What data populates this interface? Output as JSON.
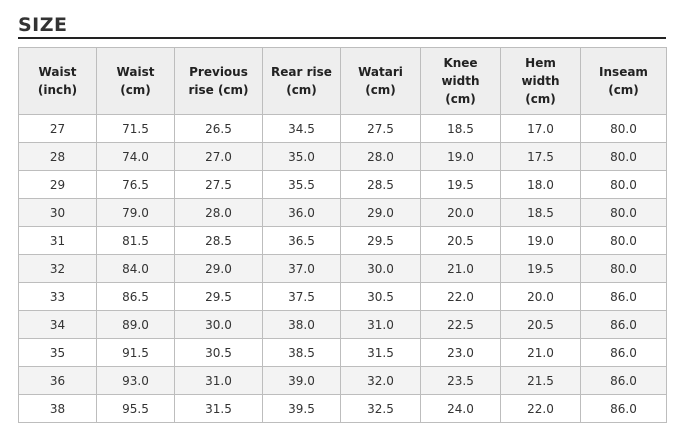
{
  "title": "SIZE",
  "table": {
    "headers": [
      "Waist\n(inch)",
      "Waist\n(cm)",
      "Previous\nrise (cm)",
      "Rear rise\n(cm)",
      "Watari\n(cm)",
      "Knee\nwidth\n(cm)",
      "Hem\nwidth\n(cm)",
      "Inseam\n(cm)"
    ],
    "rows": [
      [
        "27",
        "71.5",
        "26.5",
        "34.5",
        "27.5",
        "18.5",
        "17.0",
        "80.0"
      ],
      [
        "28",
        "74.0",
        "27.0",
        "35.0",
        "28.0",
        "19.0",
        "17.5",
        "80.0"
      ],
      [
        "29",
        "76.5",
        "27.5",
        "35.5",
        "28.5",
        "19.5",
        "18.0",
        "80.0"
      ],
      [
        "30",
        "79.0",
        "28.0",
        "36.0",
        "29.0",
        "20.0",
        "18.5",
        "80.0"
      ],
      [
        "31",
        "81.5",
        "28.5",
        "36.5",
        "29.5",
        "20.5",
        "19.0",
        "80.0"
      ],
      [
        "32",
        "84.0",
        "29.0",
        "37.0",
        "30.0",
        "21.0",
        "19.5",
        "80.0"
      ],
      [
        "33",
        "86.5",
        "29.5",
        "37.5",
        "30.5",
        "22.0",
        "20.0",
        "86.0"
      ],
      [
        "34",
        "89.0",
        "30.0",
        "38.0",
        "31.0",
        "22.5",
        "20.5",
        "86.0"
      ],
      [
        "35",
        "91.5",
        "30.5",
        "38.5",
        "31.5",
        "23.0",
        "21.0",
        "86.0"
      ],
      [
        "36",
        "93.0",
        "31.0",
        "39.0",
        "32.0",
        "23.5",
        "21.5",
        "86.0"
      ],
      [
        "38",
        "95.5",
        "31.5",
        "39.5",
        "32.5",
        "24.0",
        "22.0",
        "86.0"
      ]
    ]
  }
}
